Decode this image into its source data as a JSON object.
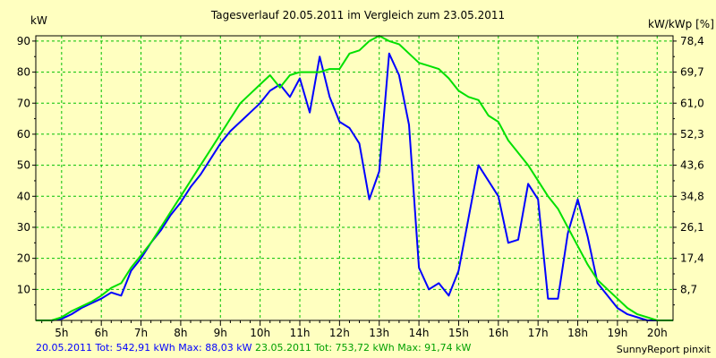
{
  "chart_data": {
    "type": "line",
    "title": "Tagesverlauf 20.05.2011 im Vergleich zum 23.05.2011",
    "ylabel_left": "kW",
    "ylabel_right": "kW/kWp [%]",
    "xlim": [
      4.35,
      20.4
    ],
    "ylim_left": [
      0,
      91.7
    ],
    "y_ticks_left": [
      10,
      20,
      30,
      40,
      50,
      60,
      70,
      80,
      90
    ],
    "y_ticks_right": [
      "8,7",
      "17,4",
      "26,1",
      "34,8",
      "43,6",
      "52,3",
      "61,0",
      "69,7",
      "78,4"
    ],
    "x_ticks": [
      {
        "value": 5,
        "label": "5h"
      },
      {
        "value": 6,
        "label": "6h"
      },
      {
        "value": 7,
        "label": "7h"
      },
      {
        "value": 8,
        "label": "8h"
      },
      {
        "value": 9,
        "label": "9h"
      },
      {
        "value": 10,
        "label": "10h"
      },
      {
        "value": 11,
        "label": "11h"
      },
      {
        "value": 12,
        "label": "12h"
      },
      {
        "value": 13,
        "label": "13h"
      },
      {
        "value": 14,
        "label": "14h"
      },
      {
        "value": 15,
        "label": "15h"
      },
      {
        "value": 16,
        "label": "16h"
      },
      {
        "value": 17,
        "label": "17h"
      },
      {
        "value": 18,
        "label": "18h"
      },
      {
        "value": 19,
        "label": "19h"
      },
      {
        "value": 20,
        "label": "20h"
      }
    ],
    "grid": true,
    "series": [
      {
        "name": "20.05.2011",
        "color": "#0000ff",
        "points": [
          [
            4.35,
            0
          ],
          [
            4.75,
            0
          ],
          [
            5,
            0.5
          ],
          [
            5.25,
            2
          ],
          [
            5.5,
            4
          ],
          [
            5.75,
            5.5
          ],
          [
            6,
            7
          ],
          [
            6.25,
            9
          ],
          [
            6.5,
            8
          ],
          [
            6.75,
            16
          ],
          [
            7,
            20
          ],
          [
            7.25,
            25
          ],
          [
            7.5,
            29
          ],
          [
            7.75,
            34
          ],
          [
            8,
            38
          ],
          [
            8.25,
            43
          ],
          [
            8.5,
            47
          ],
          [
            8.75,
            52
          ],
          [
            9,
            57
          ],
          [
            9.25,
            61
          ],
          [
            9.5,
            64
          ],
          [
            9.75,
            67
          ],
          [
            10,
            70
          ],
          [
            10.25,
            74
          ],
          [
            10.5,
            76
          ],
          [
            10.75,
            72
          ],
          [
            11,
            78
          ],
          [
            11.25,
            67
          ],
          [
            11.5,
            85
          ],
          [
            11.75,
            72
          ],
          [
            12,
            64
          ],
          [
            12.25,
            62
          ],
          [
            12.5,
            57
          ],
          [
            12.75,
            39
          ],
          [
            13,
            48
          ],
          [
            13.25,
            86
          ],
          [
            13.5,
            79
          ],
          [
            13.75,
            63
          ],
          [
            14,
            17
          ],
          [
            14.25,
            10
          ],
          [
            14.5,
            12
          ],
          [
            14.75,
            8
          ],
          [
            15,
            16
          ],
          [
            15.25,
            33
          ],
          [
            15.5,
            50
          ],
          [
            15.75,
            45
          ],
          [
            16,
            40
          ],
          [
            16.25,
            25
          ],
          [
            16.5,
            26
          ],
          [
            16.75,
            44
          ],
          [
            17,
            39
          ],
          [
            17.25,
            7
          ],
          [
            17.5,
            7
          ],
          [
            17.75,
            28
          ],
          [
            18,
            39
          ],
          [
            18.25,
            27
          ],
          [
            18.5,
            12
          ],
          [
            18.75,
            8
          ],
          [
            19,
            4
          ],
          [
            19.25,
            2
          ],
          [
            19.5,
            1
          ],
          [
            19.75,
            0
          ],
          [
            20,
            0
          ],
          [
            20.4,
            0
          ]
        ]
      },
      {
        "name": "23.05.2011",
        "color": "#00e000",
        "points": [
          [
            4.35,
            0
          ],
          [
            4.75,
            0
          ],
          [
            5,
            1
          ],
          [
            5.25,
            3
          ],
          [
            5.5,
            4.5
          ],
          [
            5.75,
            6
          ],
          [
            6,
            8
          ],
          [
            6.25,
            10.5
          ],
          [
            6.5,
            12
          ],
          [
            6.75,
            17
          ],
          [
            7,
            21
          ],
          [
            7.25,
            25
          ],
          [
            7.5,
            30
          ],
          [
            7.75,
            35
          ],
          [
            8,
            40
          ],
          [
            8.25,
            45
          ],
          [
            8.5,
            50
          ],
          [
            8.75,
            55
          ],
          [
            9,
            60
          ],
          [
            9.25,
            65
          ],
          [
            9.5,
            70
          ],
          [
            9.75,
            73
          ],
          [
            10,
            76
          ],
          [
            10.25,
            79
          ],
          [
            10.5,
            75
          ],
          [
            10.75,
            79
          ],
          [
            11,
            80
          ],
          [
            11.25,
            80
          ],
          [
            11.5,
            80
          ],
          [
            11.75,
            81
          ],
          [
            12,
            81
          ],
          [
            12.25,
            86
          ],
          [
            12.5,
            87
          ],
          [
            12.75,
            90
          ],
          [
            13,
            91.7
          ],
          [
            13.25,
            90
          ],
          [
            13.5,
            89
          ],
          [
            13.75,
            86
          ],
          [
            14,
            83
          ],
          [
            14.25,
            82
          ],
          [
            14.5,
            81
          ],
          [
            14.75,
            78
          ],
          [
            15,
            74
          ],
          [
            15.25,
            72
          ],
          [
            15.5,
            71
          ],
          [
            15.75,
            66
          ],
          [
            16,
            64
          ],
          [
            16.25,
            58
          ],
          [
            16.5,
            54
          ],
          [
            16.75,
            50
          ],
          [
            17,
            45
          ],
          [
            17.25,
            40
          ],
          [
            17.5,
            36
          ],
          [
            17.75,
            30
          ],
          [
            18,
            24
          ],
          [
            18.25,
            18
          ],
          [
            18.5,
            13
          ],
          [
            18.75,
            10
          ],
          [
            19,
            7
          ],
          [
            19.25,
            4
          ],
          [
            19.5,
            2
          ],
          [
            19.75,
            1
          ],
          [
            20,
            0
          ],
          [
            20.4,
            0
          ]
        ]
      }
    ]
  },
  "footer": {
    "series1_text": "20.05.2011 Tot: 542,91 kWh Max: 88,03 kW",
    "series2_text": "23.05.2011 Tot: 753,72 kWh Max: 91,74 kW"
  },
  "source": "SunnyReport pinxit"
}
